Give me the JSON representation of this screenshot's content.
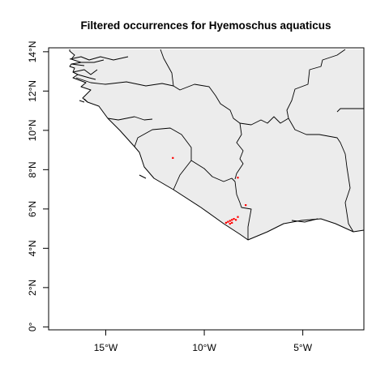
{
  "map": {
    "title": "Filtered occurrences for Hyemoschus aquaticus",
    "x_ticks": [
      {
        "lon": -15,
        "label": "15°W"
      },
      {
        "lon": -10,
        "label": "10°W"
      },
      {
        "lon": -5,
        "label": "5°W"
      }
    ],
    "y_ticks": [
      {
        "lat": 0,
        "label": "0°"
      },
      {
        "lat": 2,
        "label": "2°N"
      },
      {
        "lat": 4,
        "label": "4°N"
      },
      {
        "lat": 6,
        "label": "6°N"
      },
      {
        "lat": 8,
        "label": "8°N"
      },
      {
        "lat": 10,
        "label": "10°N"
      },
      {
        "lat": 12,
        "label": "12°N"
      },
      {
        "lat": 14,
        "label": "14°N"
      }
    ],
    "lon_range": [
      -17.9,
      -1.9
    ],
    "lat_range": [
      -0.15,
      14.2
    ],
    "land_color": "#ececec",
    "point_color": "#ff0000",
    "occurrences": [
      {
        "lon": -11.6,
        "lat": 8.6
      },
      {
        "lon": -8.3,
        "lat": 7.6
      },
      {
        "lon": -7.9,
        "lat": 6.2
      },
      {
        "lon": -8.3,
        "lat": 5.6
      },
      {
        "lon": -8.5,
        "lat": 5.5
      },
      {
        "lon": -8.4,
        "lat": 5.45
      },
      {
        "lon": -8.6,
        "lat": 5.45
      },
      {
        "lon": -8.7,
        "lat": 5.4
      },
      {
        "lon": -8.8,
        "lat": 5.35
      },
      {
        "lon": -8.6,
        "lat": 5.3
      },
      {
        "lon": -8.9,
        "lat": 5.3
      },
      {
        "lon": -8.7,
        "lat": 5.25
      }
    ]
  }
}
